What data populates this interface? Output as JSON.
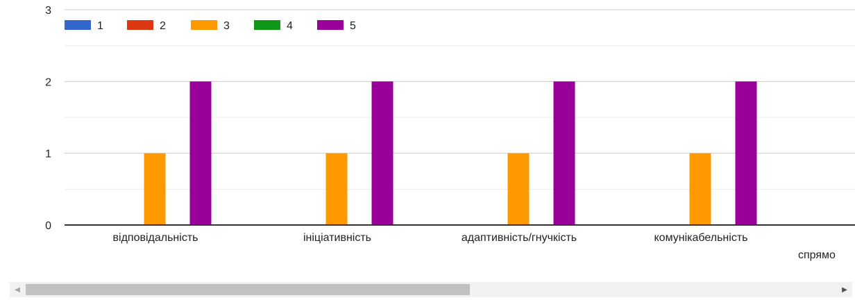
{
  "chart_data": {
    "type": "bar",
    "categories": [
      "відповідальність",
      "ініціативність",
      "адаптивність/гнучкість",
      "комунікабельність",
      "спрямо"
    ],
    "series": [
      {
        "name": "1",
        "color": "#3366cc",
        "values": [
          0,
          0,
          0,
          0,
          null
        ]
      },
      {
        "name": "2",
        "color": "#dc3912",
        "values": [
          0,
          0,
          0,
          0,
          null
        ]
      },
      {
        "name": "3",
        "color": "#ff9900",
        "values": [
          1,
          1,
          1,
          1,
          null
        ]
      },
      {
        "name": "4",
        "color": "#109618",
        "values": [
          0,
          0,
          0,
          0,
          null
        ]
      },
      {
        "name": "5",
        "color": "#990099",
        "values": [
          2,
          2,
          2,
          2,
          null
        ]
      }
    ],
    "ylim": [
      0,
      3
    ],
    "yticks": [
      0,
      1,
      2,
      3
    ],
    "grid": true,
    "legend_position": "top-left"
  },
  "scrollbar": {
    "left_arrow": "◀",
    "right_arrow": "▶"
  }
}
